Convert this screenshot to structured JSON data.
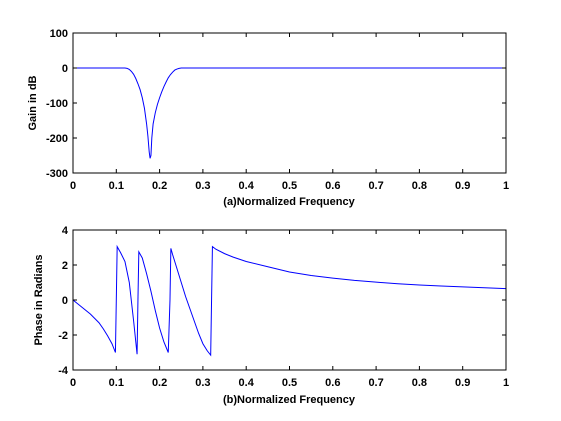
{
  "figure": {
    "background": "#ffffff",
    "line_color": "#0000ff"
  },
  "chart_data": [
    {
      "type": "line",
      "title": "",
      "xlabel": "(a)Normalized Frequency",
      "ylabel": "Gain in dB",
      "xlim": [
        0,
        1
      ],
      "ylim": [
        -300,
        100
      ],
      "xticks": [
        0,
        0.1,
        0.2,
        0.3,
        0.4,
        0.5,
        0.6,
        0.7,
        0.8,
        0.9,
        1
      ],
      "xtick_labels": [
        "0",
        "0.1",
        "0.2",
        "0.3",
        "0.4",
        "0.5",
        "0.6",
        "0.7",
        "0.8",
        "0.9",
        "1"
      ],
      "yticks": [
        100,
        0,
        -100,
        -200,
        -300
      ],
      "ytick_labels": [
        "100",
        "0",
        "-100",
        "-200",
        "-300"
      ],
      "grid": false,
      "series": [
        {
          "color": "#0000ff",
          "x": [
            0,
            0.12,
            0.125,
            0.13,
            0.135,
            0.14,
            0.145,
            0.15,
            0.155,
            0.16,
            0.165,
            0.17,
            0.173,
            0.176,
            0.178,
            0.18,
            0.182,
            0.185,
            0.19,
            0.195,
            0.2,
            0.205,
            0.21,
            0.215,
            0.22,
            0.225,
            0.23,
            0.235,
            0.24,
            0.245,
            0.25,
            0.255,
            0.26,
            1
          ],
          "y": [
            0,
            0,
            -1,
            -4,
            -10,
            -18,
            -30,
            -45,
            -62,
            -85,
            -115,
            -160,
            -195,
            -240,
            -258,
            -250,
            -200,
            -160,
            -128,
            -104,
            -85,
            -68,
            -53,
            -40,
            -28,
            -19,
            -12,
            -6,
            -3,
            -1,
            0,
            0,
            0,
            0
          ]
        }
      ]
    },
    {
      "type": "line",
      "title": "",
      "xlabel": "(b)Normalized Frequency",
      "ylabel": "Phase in Radians",
      "xlim": [
        0,
        1
      ],
      "ylim": [
        -4,
        4
      ],
      "xticks": [
        0,
        0.1,
        0.2,
        0.3,
        0.4,
        0.5,
        0.6,
        0.7,
        0.8,
        0.9,
        1
      ],
      "xtick_labels": [
        "0",
        "0.1",
        "0.2",
        "0.3",
        "0.4",
        "0.5",
        "0.6",
        "0.7",
        "0.8",
        "0.9",
        "1"
      ],
      "yticks": [
        4,
        2,
        0,
        -2,
        -4
      ],
      "ytick_labels": [
        "4",
        "2",
        "0",
        "-2",
        "-4"
      ],
      "grid": false,
      "series": [
        {
          "color": "#0000ff",
          "x": [
            0,
            0.01,
            0.02,
            0.03,
            0.04,
            0.05,
            0.06,
            0.07,
            0.08,
            0.09,
            0.098,
            0.1,
            0.102,
            0.11,
            0.12,
            0.13,
            0.14,
            0.148,
            0.15,
            0.152,
            0.16,
            0.17,
            0.18,
            0.19,
            0.2,
            0.21,
            0.22,
            0.224,
            0.226,
            0.23,
            0.24,
            0.25,
            0.26,
            0.27,
            0.28,
            0.29,
            0.3,
            0.31,
            0.318,
            0.32,
            0.322,
            0.33,
            0.35,
            0.37,
            0.4,
            0.45,
            0.5,
            0.55,
            0.6,
            0.65,
            0.7,
            0.75,
            0.8,
            0.85,
            0.9,
            0.95,
            1
          ],
          "y": [
            0,
            -0.2,
            -0.4,
            -0.6,
            -0.8,
            -1.05,
            -1.3,
            -1.65,
            -2.05,
            -2.5,
            -3.0,
            0.0,
            3.05,
            2.7,
            2.2,
            1.0,
            -1.2,
            -3.1,
            0.0,
            2.75,
            2.4,
            1.5,
            0.5,
            -0.6,
            -1.6,
            -2.4,
            -3.0,
            0.0,
            2.95,
            2.6,
            1.8,
            1.0,
            0.2,
            -0.5,
            -1.2,
            -1.9,
            -2.5,
            -2.9,
            -3.15,
            0.0,
            3.05,
            2.9,
            2.65,
            2.45,
            2.2,
            1.9,
            1.6,
            1.4,
            1.25,
            1.12,
            1.02,
            0.93,
            0.86,
            0.8,
            0.75,
            0.7,
            0.65
          ]
        }
      ]
    }
  ]
}
